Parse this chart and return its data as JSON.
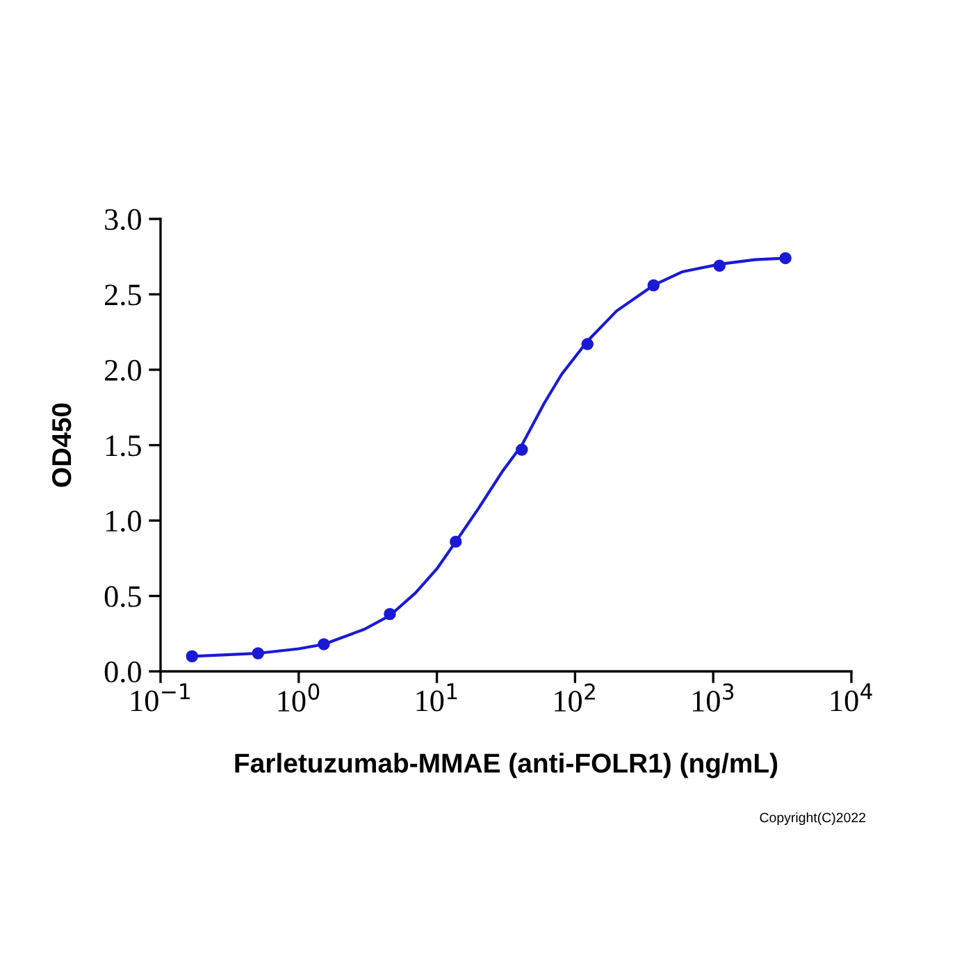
{
  "chart_data": {
    "type": "scatter",
    "xlabel": "Farletuzumab-MMAE (anti-FOLR1) (ng/mL)",
    "ylabel": "OD450",
    "log": "x",
    "xlim": [
      0.1,
      10000
    ],
    "ylim": [
      0,
      3.0
    ],
    "xticks": [
      {
        "value": 0.1,
        "label": "10$^{−1}$"
      },
      {
        "value": 1,
        "label": "10$^{0}$"
      },
      {
        "value": 10,
        "label": "10$^{1}$"
      },
      {
        "value": 100,
        "label": "10$^{2}$"
      },
      {
        "value": 1000,
        "label": "10$^{3}$"
      },
      {
        "value": 10000,
        "label": "10$^{4}$"
      }
    ],
    "yticks": [
      {
        "value": 0,
        "label": "0.0"
      },
      {
        "value": 0.5,
        "label": "0.5"
      },
      {
        "value": 1,
        "label": "1.0"
      },
      {
        "value": 1.5,
        "label": "1.5"
      },
      {
        "value": 2,
        "label": "2.0"
      },
      {
        "value": 2.5,
        "label": "2.5"
      },
      {
        "value": 3,
        "label": "3.0"
      }
    ],
    "grid": false,
    "legend": false,
    "marker": "circle",
    "annotations": [
      "Copyright(C)2022"
    ],
    "series": [
      {
        "color": "#1a1ad6",
        "x": [
          0.169,
          0.508,
          1.52,
          4.57,
          13.7,
          41.2,
          123,
          370,
          1111,
          3333
        ],
        "values": [
          0.1,
          0.12,
          0.18,
          0.38,
          0.86,
          1.47,
          2.17,
          2.56,
          2.69,
          2.74
        ]
      },
      {
        "type": "line",
        "color": "#1a1ad6",
        "marker": "none",
        "line_style": "solid",
        "x": [
          0.169,
          0.3,
          0.508,
          1,
          1.52,
          3,
          4.57,
          7,
          10,
          13.7,
          20,
          30,
          41.2,
          60,
          80,
          123,
          200,
          370,
          600,
          1111,
          2000,
          3333
        ],
        "values": [
          0.1,
          0.11,
          0.12,
          0.15,
          0.18,
          0.28,
          0.37,
          0.52,
          0.68,
          0.86,
          1.08,
          1.33,
          1.5,
          1.78,
          1.97,
          2.19,
          2.39,
          2.56,
          2.65,
          2.7,
          2.73,
          2.74
        ]
      }
    ]
  }
}
